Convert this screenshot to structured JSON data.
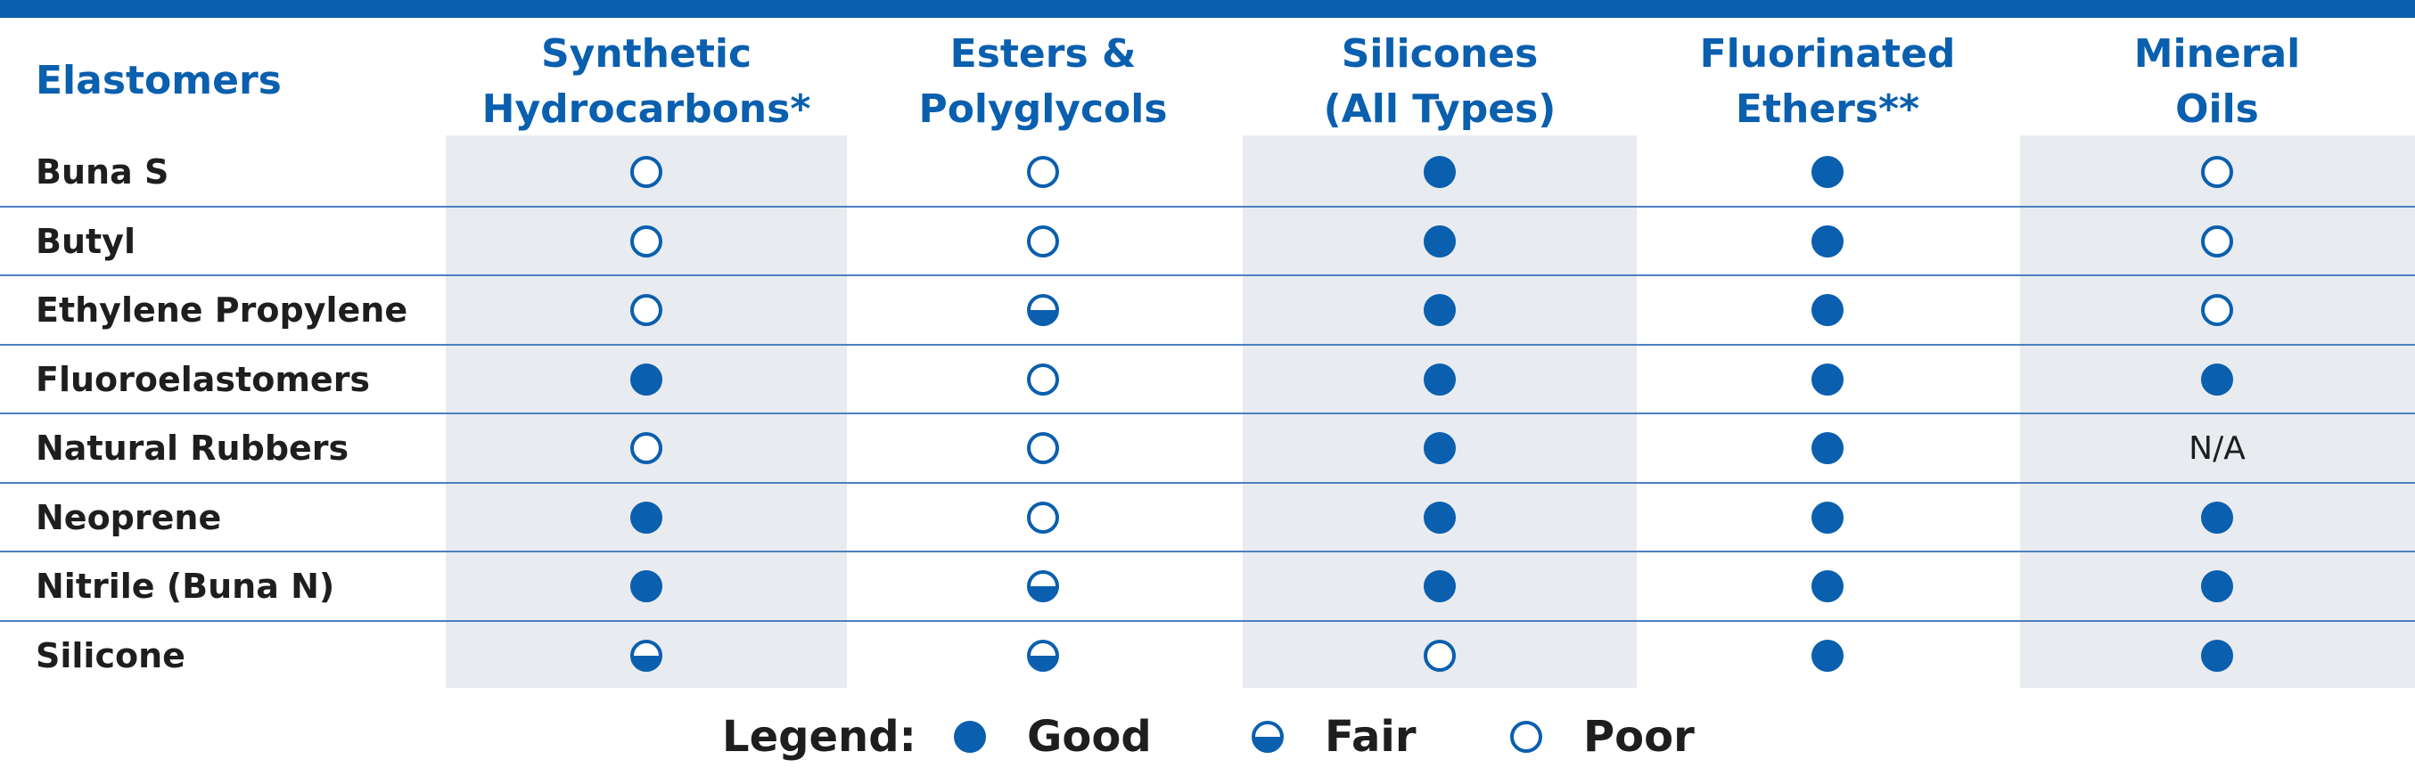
{
  "header": {
    "first_column": "Elastomers",
    "columns": [
      "Synthetic\nHydrocarbons*",
      "Esters &\nPolyglycols",
      "Silicones\n(All Types)",
      "Fluorinated\nEthers**",
      "Mineral\nOils"
    ]
  },
  "rows": [
    {
      "label": "Buna S",
      "cells": [
        "poor",
        "poor",
        "good",
        "good",
        "poor"
      ]
    },
    {
      "label": "Butyl",
      "cells": [
        "poor",
        "poor",
        "good",
        "good",
        "poor"
      ]
    },
    {
      "label": "Ethylene Propylene",
      "cells": [
        "poor",
        "fair",
        "good",
        "good",
        "poor"
      ]
    },
    {
      "label": "Fluoroelastomers",
      "cells": [
        "good",
        "poor",
        "good",
        "good",
        "good"
      ]
    },
    {
      "label": "Natural Rubbers",
      "cells": [
        "poor",
        "poor",
        "good",
        "good",
        "N/A"
      ]
    },
    {
      "label": "Neoprene",
      "cells": [
        "good",
        "poor",
        "good",
        "good",
        "good"
      ]
    },
    {
      "label": "Nitrile (Buna N)",
      "cells": [
        "good",
        "fair",
        "good",
        "good",
        "good"
      ]
    },
    {
      "label": "Silicone",
      "cells": [
        "fair",
        "fair",
        "poor",
        "good",
        "good"
      ]
    }
  ],
  "legend": {
    "title": "Legend:",
    "good": "Good",
    "fair": "Fair",
    "poor": "Poor"
  },
  "colors": {
    "accent": "#0a5fae",
    "shade": "#e8ebef",
    "rule": "#4d7fc1"
  }
}
